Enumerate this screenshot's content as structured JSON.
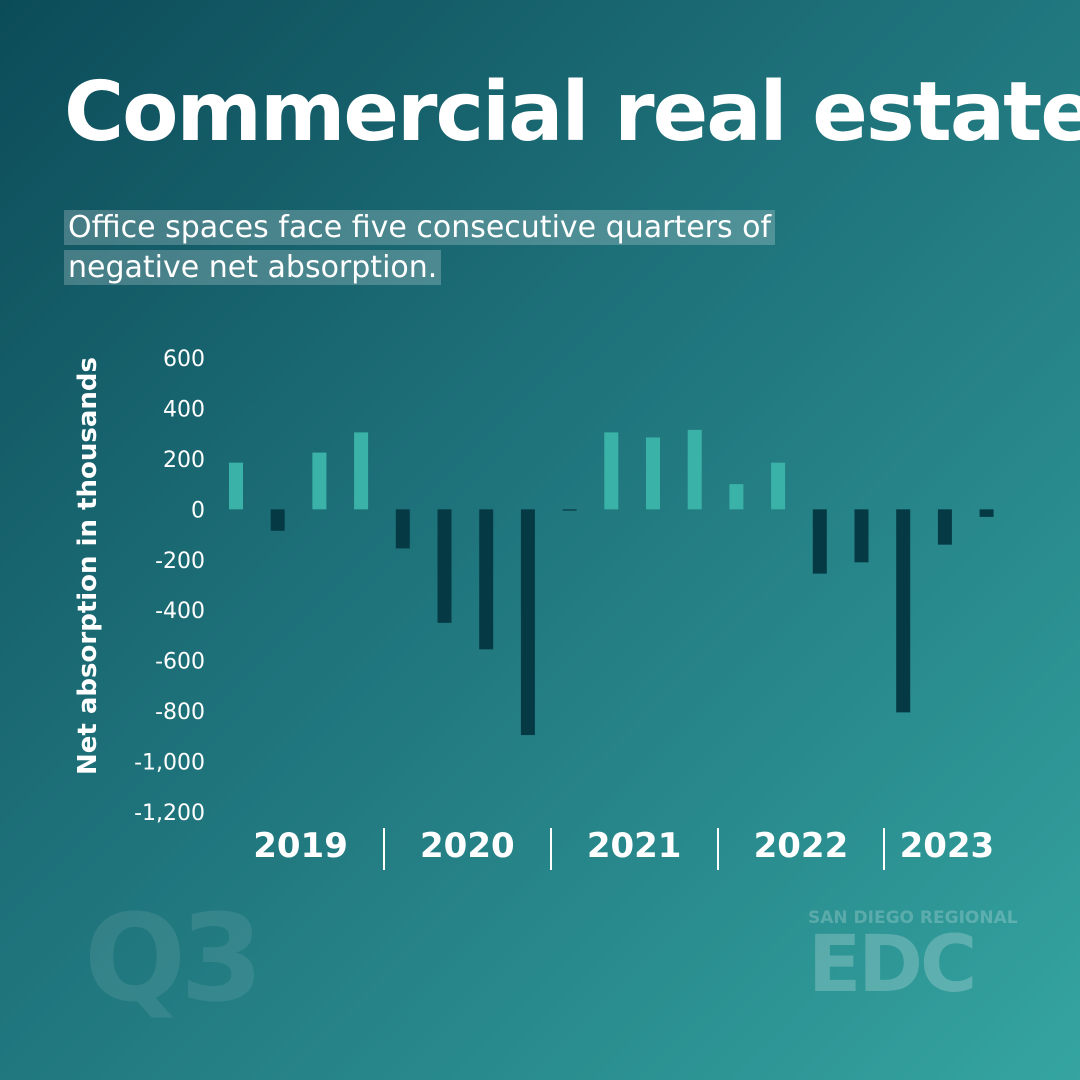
{
  "title": "Commercial real estate",
  "subtitle_line1": "Office spaces face five consecutive quarters of",
  "subtitle_line2": "negative net absorption.",
  "badge": "Q3",
  "logo": {
    "top": "SAN DIEGO REGIONAL",
    "mark": "EDC"
  },
  "colors": {
    "positive": "#3bb2a8",
    "negative": "#053a45"
  },
  "chart_data": {
    "type": "bar",
    "ylabel": "Net absorption in thousands",
    "ylim": [
      -1200,
      600
    ],
    "yticks": [
      600,
      400,
      200,
      0,
      -200,
      -400,
      -600,
      -800,
      -1000,
      -1200
    ],
    "ytick_labels": [
      "600",
      "400",
      "200",
      "0",
      "-200",
      "-400",
      "-600",
      "-800",
      "-1,000",
      "-1,200"
    ],
    "years": [
      "2019",
      "2020",
      "2021",
      "2022",
      "2023"
    ],
    "quarters_per_year": [
      4,
      4,
      4,
      4,
      3
    ],
    "values": [
      185,
      -85,
      225,
      305,
      -155,
      -450,
      -555,
      -895,
      -5,
      305,
      285,
      315,
      100,
      185,
      -255,
      -210,
      -805,
      -140,
      -30
    ]
  }
}
